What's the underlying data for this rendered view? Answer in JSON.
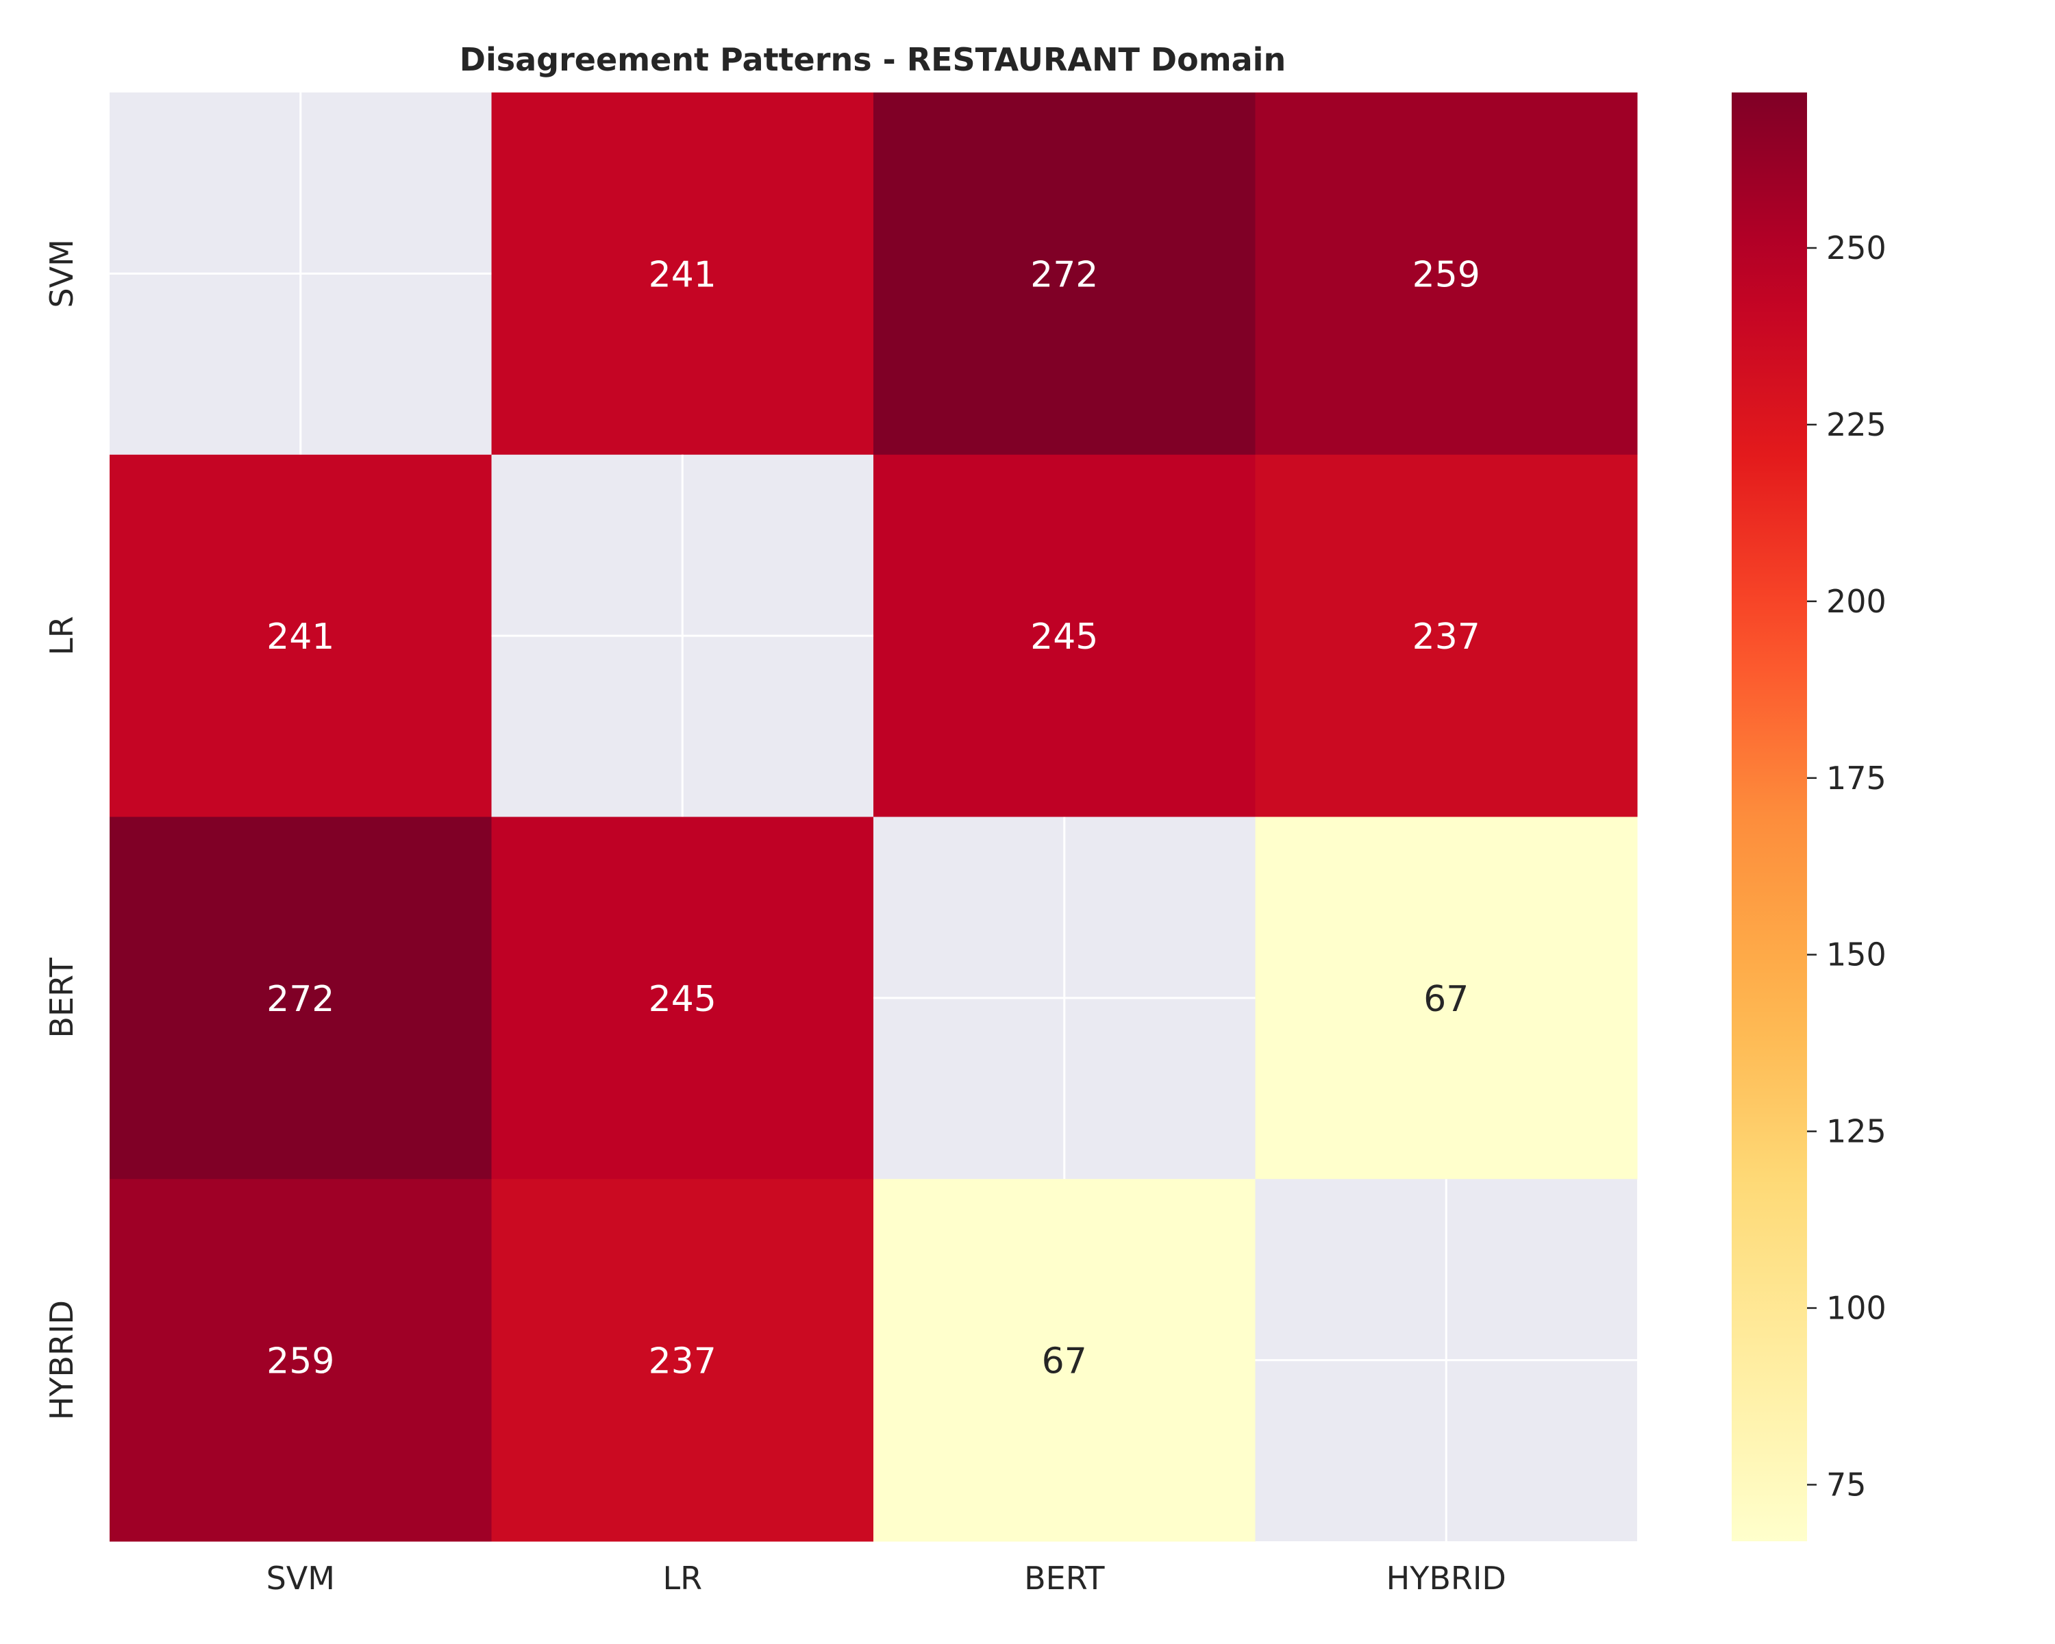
{
  "chart_data": {
    "type": "heatmap",
    "title": "Disagreement Patterns - RESTAURANT Domain",
    "x_labels": [
      "SVM",
      "LR",
      "BERT",
      "HYBRID"
    ],
    "y_labels": [
      "SVM",
      "LR",
      "BERT",
      "HYBRID"
    ],
    "matrix": [
      [
        null,
        241,
        272,
        259
      ],
      [
        241,
        null,
        245,
        237
      ],
      [
        272,
        245,
        null,
        67
      ],
      [
        259,
        237,
        67,
        null
      ]
    ],
    "colormap": "YlOrRd",
    "vmin": 67,
    "vmax": 272,
    "masked_color": "#eaeaf2",
    "colorbar": {
      "ticks": [
        75,
        100,
        125,
        150,
        175,
        200,
        225,
        250
      ],
      "tick_labels": [
        "75",
        "100",
        "125",
        "150",
        "175",
        "200",
        "225",
        "250"
      ]
    }
  }
}
